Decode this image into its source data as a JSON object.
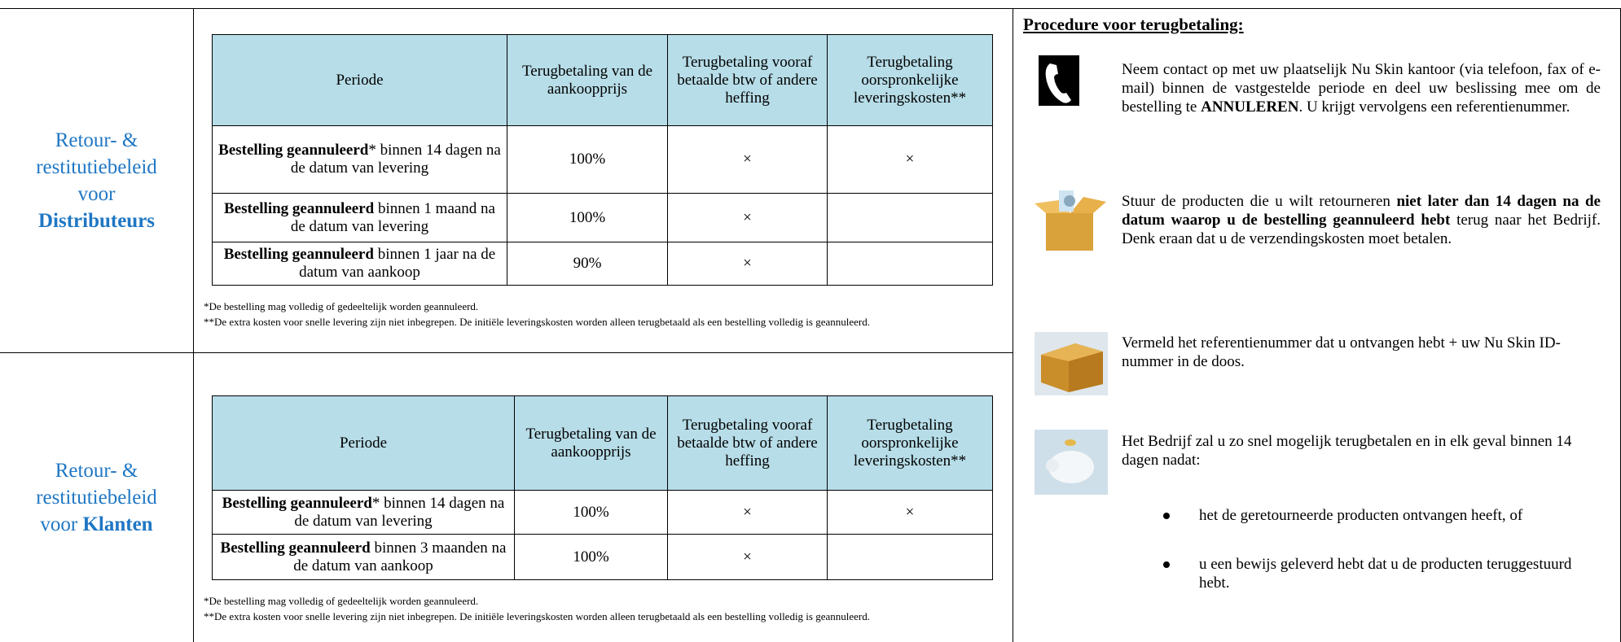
{
  "sections": [
    {
      "label": {
        "text": "Retour- & restitutiebeleid voor",
        "bold": "Distributeurs"
      },
      "table": {
        "header": [
          "Periode",
          "Terugbetaling van de aankoopprijs",
          "Terugbetaling vooraf betaalde btw of andere heffing",
          "Terugbetaling oorspronkelijke leveringskosten**"
        ],
        "rows": [
          [
            {
              "bold": "Bestelling geannuleerd",
              "rest": "* binnen 14 dagen na de datum van levering"
            },
            "100%",
            "×",
            "×"
          ],
          [
            {
              "bold": "Bestelling geannuleerd",
              "rest": " binnen 1 maand na de datum van levering"
            },
            "100%",
            "×",
            null
          ],
          [
            {
              "bold": "Bestelling geannuleerd",
              "rest": " binnen 1 jaar na de datum van aankoop"
            },
            "90%",
            "×",
            null
          ]
        ]
      },
      "footnotes": [
        "*De bestelling mag volledig of gedeeltelijk worden geannuleerd.",
        "**De extra kosten voor snelle levering zijn niet inbegrepen. De initiële leveringskosten worden alleen terugbetaald als een bestelling volledig is geannuleerd."
      ]
    },
    {
      "label": {
        "text": "Retour- & restitutiebeleid voor",
        "bold": "Klanten"
      },
      "table": {
        "header": [
          "Periode",
          "Terugbetaling van de aankoopprijs",
          "Terugbetaling vooraf betaalde btw of andere heffing",
          "Terugbetaling oorspronkelijke leveringskosten**"
        ],
        "rows": [
          [
            {
              "bold": "Bestelling geannuleerd",
              "rest": "* binnen 14 dagen na de datum van levering"
            },
            "100%",
            "×",
            "×"
          ],
          [
            {
              "bold": "Bestelling geannuleerd",
              "rest": " binnen 3 maanden na de datum van aankoop"
            },
            "100%",
            "×",
            null
          ]
        ]
      },
      "footnotes": [
        "*De bestelling mag volledig of gedeeltelijk worden geannuleerd.",
        "**De extra kosten voor snelle levering zijn niet inbegrepen. De initiële leveringskosten worden alleen terugbetaald als een bestelling volledig is geannuleerd."
      ]
    }
  ],
  "procedure": {
    "title": "Procedure voor terugbetaling:",
    "steps": [
      {
        "parts": [
          {
            "text": "Neem contact op met uw plaatselijk Nu Skin kantoor (via telefoon, fax of e-mail) binnen de vastgestelde periode en deel uw beslissing mee om de bestelling te ",
            "bold": false
          },
          {
            "text": "ANNULEREN",
            "bold": true
          },
          {
            "text": ". U krijgt vervolgens een referentienummer.",
            "bold": false
          }
        ]
      },
      {
        "parts": [
          {
            "text": "Stuur de producten die u wilt retourneren ",
            "bold": false
          },
          {
            "text": "niet later dan 14 dagen na de datum waarop u de bestelling geannuleerd hebt",
            "bold": true
          },
          {
            "text": " terug naar het Bedrijf. Denk eraan dat u de verzendingskosten moet betalen.",
            "bold": false
          }
        ]
      },
      {
        "parts": [
          {
            "text": "Vermeld het referentienummer dat u ontvangen hebt + uw Nu Skin ID-nummer in de doos.",
            "bold": false
          }
        ]
      },
      {
        "parts": [
          {
            "text": "Het Bedrijf zal u zo snel mogelijk terugbetalen en in elk geval binnen 14 dagen nadat:",
            "bold": false
          }
        ],
        "bullets": [
          "het de geretourneerde producten ontvangen heeft, of",
          "u een bewijs geleverd hebt dat u de producten teruggestuurd hebt."
        ]
      }
    ]
  }
}
